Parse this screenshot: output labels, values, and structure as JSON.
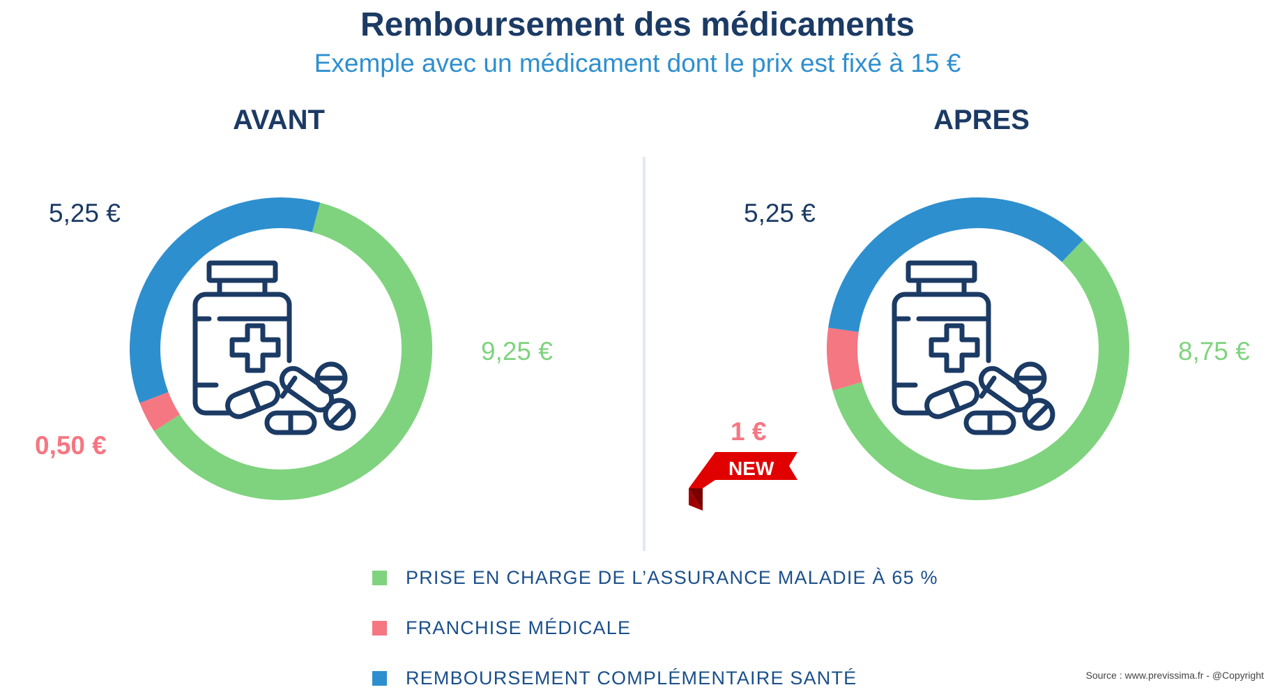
{
  "title": "Remboursement des médicaments",
  "subtitle": "Exemple avec un médicament dont le prix est fixé à 15 €",
  "colors": {
    "green": "#7fd37e",
    "red": "#f47782",
    "blue": "#2e8fcf",
    "navy": "#1b3a64"
  },
  "chart_data": [
    {
      "type": "pie",
      "title": "AVANT",
      "categories": [
        "Prise en charge de l'assurance maladie à 65 %",
        "Franchise médicale",
        "Remboursement complémentaire santé"
      ],
      "values": [
        9.25,
        0.5,
        5.25
      ],
      "labels": [
        "9,25 €",
        "0,50 €",
        "5,25 €"
      ],
      "total": 15
    },
    {
      "type": "pie",
      "title": "APRES",
      "categories": [
        "Prise en charge de l'assurance maladie à 65 %",
        "Franchise médicale",
        "Remboursement complémentaire santé"
      ],
      "values": [
        8.75,
        1,
        5.25
      ],
      "labels": [
        "8,75 €",
        "1 €",
        "5,25 €"
      ],
      "total": 15
    }
  ],
  "badge": {
    "label": "NEW"
  },
  "legend": [
    {
      "label": "PRISE EN CHARGE DE L’ASSURANCE MALADIE À 65 %",
      "color": "#7fd37e"
    },
    {
      "label": "FRANCHISE MÉDICALE",
      "color": "#f47782"
    },
    {
      "label": "REMBOURSEMENT COMPLÉMENTAIRE SANTÉ",
      "color": "#2e8fcf"
    }
  ],
  "icons": [
    "medicine-bottle-icon",
    "pills-icon"
  ],
  "source": "Source : www.previssima.fr - @Copyright"
}
